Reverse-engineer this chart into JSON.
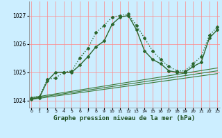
{
  "title": "Graphe pression niveau de la mer (hPa)",
  "background_color": "#cceeff",
  "grid_color": "#ff8888",
  "ylim": [
    1023.75,
    1027.5
  ],
  "xlim": [
    -0.3,
    23.3
  ],
  "yticks": [
    1024,
    1025,
    1026,
    1027
  ],
  "xticks": [
    0,
    1,
    2,
    3,
    4,
    5,
    6,
    7,
    8,
    9,
    10,
    11,
    12,
    13,
    14,
    15,
    16,
    17,
    18,
    19,
    20,
    21,
    22,
    23
  ],
  "line_dotted": {
    "x": [
      0,
      1,
      2,
      3,
      4,
      5,
      6,
      7,
      8,
      9,
      10,
      11,
      12,
      13,
      14,
      15,
      16,
      17,
      18,
      19,
      20,
      21,
      22,
      23
    ],
    "y": [
      1024.1,
      1024.15,
      1024.75,
      1024.8,
      1025.0,
      1025.05,
      1025.5,
      1025.85,
      1026.4,
      1026.65,
      1026.95,
      1027.0,
      1027.05,
      1026.65,
      1026.2,
      1025.75,
      1025.45,
      1025.2,
      1025.05,
      1025.05,
      1025.3,
      1025.55,
      1026.3,
      1026.6
    ],
    "color": "#2d662d",
    "lw": 1.0,
    "marker": "D",
    "ms": 2.0
  },
  "line_solid": {
    "x": [
      0,
      1,
      2,
      3,
      4,
      5,
      6,
      7,
      8,
      9,
      10,
      11,
      12,
      13,
      14,
      15,
      16,
      17,
      18,
      19,
      20,
      21,
      22,
      23
    ],
    "y": [
      1024.05,
      1024.1,
      1024.7,
      1025.0,
      1025.0,
      1025.0,
      1025.25,
      1025.55,
      1025.9,
      1026.1,
      1026.7,
      1026.95,
      1027.0,
      1026.5,
      1025.75,
      1025.45,
      1025.3,
      1025.05,
      1025.0,
      1025.0,
      1025.2,
      1025.35,
      1026.2,
      1026.5
    ],
    "color": "#2d662d",
    "lw": 1.0,
    "marker": "D",
    "ms": 2.0
  },
  "trend_lines": [
    {
      "x": [
        0,
        23
      ],
      "y": [
        1024.1,
        1025.15
      ]
    },
    {
      "x": [
        0,
        23
      ],
      "y": [
        1024.07,
        1025.05
      ]
    },
    {
      "x": [
        0,
        23
      ],
      "y": [
        1024.04,
        1024.95
      ]
    }
  ],
  "trend_color": "#3a7a3a",
  "trend_lw": 0.8,
  "text_color": "#1a4a1a",
  "title_fontsize": 6.5
}
